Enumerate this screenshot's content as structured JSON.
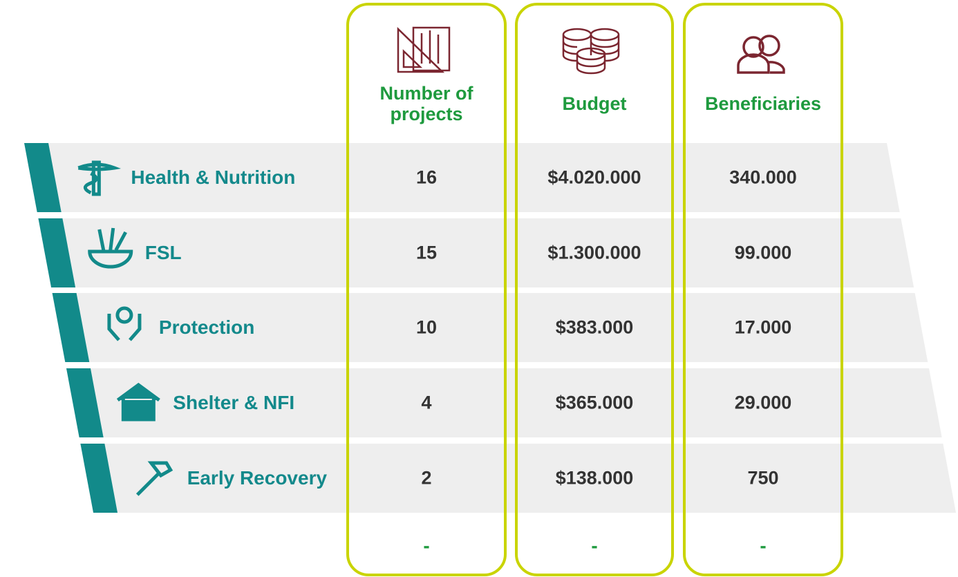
{
  "header": {
    "columns": [
      "Number of projects",
      "Budget",
      "Beneficiaries"
    ]
  },
  "rows": [
    {
      "label": "Health & Nutrition",
      "values": [
        "16",
        "$4.020.000",
        "340.000"
      ]
    },
    {
      "label": "FSL",
      "values": [
        "15",
        "$1.300.000",
        "99.000"
      ]
    },
    {
      "label": "Protection",
      "values": [
        "10",
        "$383.000",
        "17.000"
      ]
    },
    {
      "label": "Shelter & NFI",
      "values": [
        "4",
        "$365.000",
        "29.000"
      ]
    },
    {
      "label": "Early Recovery",
      "values": [
        "2",
        "$138.000",
        "750"
      ]
    }
  ],
  "footer": {
    "values": [
      "-",
      "-",
      "-"
    ]
  }
}
